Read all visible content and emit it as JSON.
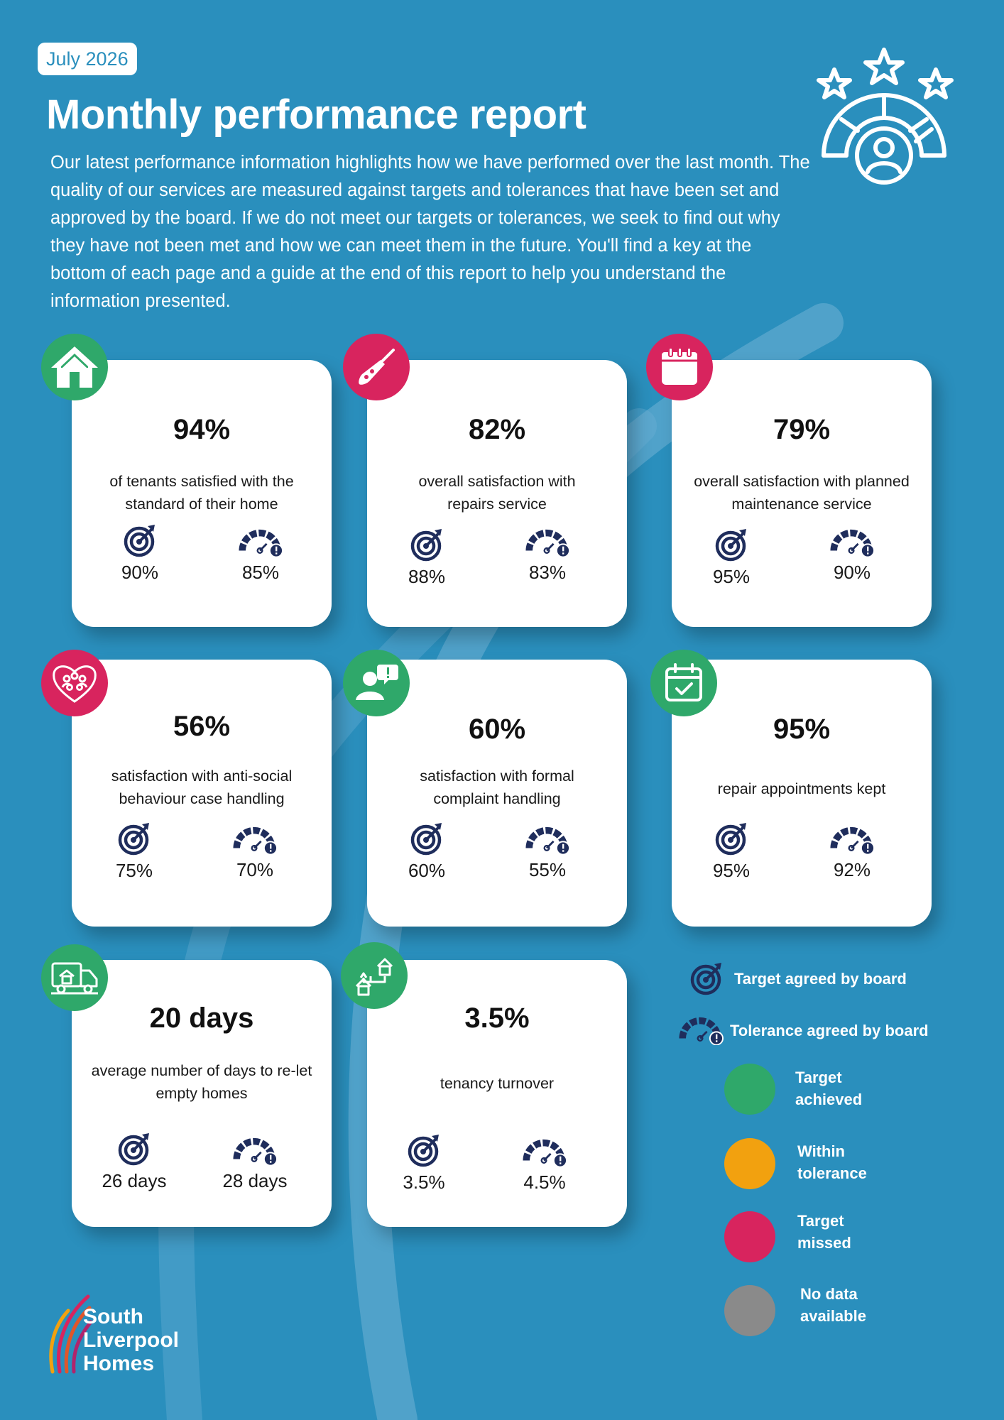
{
  "header": {
    "date": "July 2026",
    "title": "Monthly performance report",
    "intro": "Our latest performance information highlights how we have performed over the last month. The quality of our services are measured against targets and tolerances that have been set and approved by the board. If we do not meet our targets or tolerances, we seek to find out why they have not been met and how we can meet them in the future. You'll find a key at the bottom of each page and a guide at the end of this report to help you understand the information presented."
  },
  "cards": [
    {
      "icon": "house-icon",
      "status": "target-achieved",
      "value": "94%",
      "description": "of tenants satisfied with the standard of their home",
      "target": "90%",
      "tolerance": "85%"
    },
    {
      "icon": "screwdriver-icon",
      "status": "target-missed",
      "value": "82%",
      "description": "overall satisfaction with repairs service",
      "target": "88%",
      "tolerance": "83%"
    },
    {
      "icon": "calendar-icon",
      "status": "target-missed",
      "value": "79%",
      "description": "overall satisfaction with planned maintenance service",
      "target": "95%",
      "tolerance": "90%"
    },
    {
      "icon": "heart-community-icon",
      "status": "target-missed",
      "value": "56%",
      "description": "satisfaction with anti-social behaviour case handling",
      "target": "75%",
      "tolerance": "70%"
    },
    {
      "icon": "complaint-person-icon",
      "status": "target-achieved",
      "value": "60%",
      "description": "satisfaction with formal complaint handling",
      "target": "60%",
      "tolerance": "55%"
    },
    {
      "icon": "calendar-check-icon",
      "status": "target-achieved",
      "value": "95%",
      "description": "repair appointments kept",
      "target": "95%",
      "tolerance": "92%"
    },
    {
      "icon": "removal-van-icon",
      "status": "target-achieved",
      "value": "20 days",
      "description": "average number of days to re-let empty homes",
      "target": "26 days",
      "tolerance": "28 days"
    },
    {
      "icon": "house-move-icon",
      "status": "target-achieved",
      "value": "3.5%",
      "description": "tenancy turnover",
      "target": "3.5%",
      "tolerance": "4.5%"
    }
  ],
  "legend": {
    "target_label": "Target agreed by board",
    "tolerance_label": "Tolerance agreed by board",
    "statuses": [
      {
        "label_line1": "Target",
        "label_line2": "achieved",
        "color": "#2fa86a"
      },
      {
        "label_line1": "Within",
        "label_line2": "tolerance",
        "color": "#f2a10f"
      },
      {
        "label_line1": "Target",
        "label_line2": "missed",
        "color": "#d8245e"
      },
      {
        "label_line1": "No data",
        "label_line2": "available",
        "color": "#8a8a8a"
      }
    ]
  },
  "logo": {
    "line1": "South",
    "line2": "Liverpool",
    "line3": "Homes"
  },
  "colors": {
    "background": "#2a8fbd",
    "navy": "#1f2d5c",
    "green": "#2fa86a",
    "pink": "#d8245e",
    "amber": "#f2a10f",
    "grey": "#8a8a8a"
  }
}
